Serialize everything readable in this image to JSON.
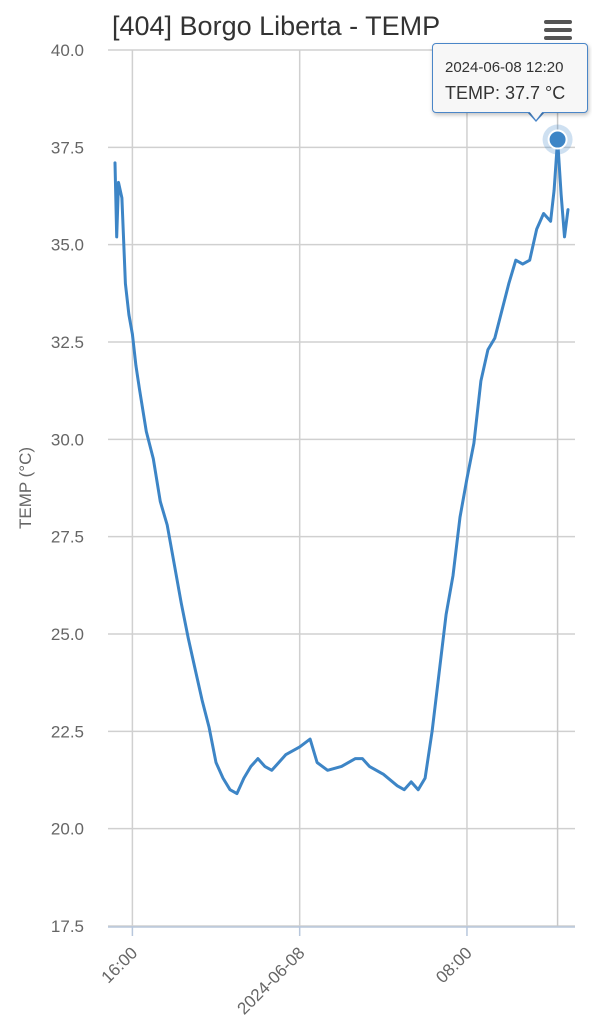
{
  "chart_data": {
    "type": "line",
    "title": "[404] Borgo Liberta - TEMP",
    "ylabel": "TEMP (°C)",
    "xlabel": "",
    "ylim": [
      17.5,
      40.0
    ],
    "yticks": [
      "17.5",
      "20.0",
      "22.5",
      "25.0",
      "27.5",
      "30.0",
      "32.5",
      "35.0",
      "37.5",
      "40.0"
    ],
    "xlim": [
      "2024-06-07 14:50",
      "2024-06-08 13:10"
    ],
    "xticks": [
      {
        "t": "2024-06-07 16:00",
        "label": "16:00"
      },
      {
        "t": "2024-06-08 00:00",
        "label": "2024-06-08"
      },
      {
        "t": "2024-06-08 08:00",
        "label": "08:00"
      }
    ],
    "grid": true,
    "series": [
      {
        "color": "#3d85c6",
        "points": [
          [
            "2024-06-07 15:10",
            37.1
          ],
          [
            "2024-06-07 15:15",
            35.2
          ],
          [
            "2024-06-07 15:20",
            36.6
          ],
          [
            "2024-06-07 15:30",
            36.2
          ],
          [
            "2024-06-07 15:40",
            34.0
          ],
          [
            "2024-06-07 15:50",
            33.2
          ],
          [
            "2024-06-07 16:00",
            32.7
          ],
          [
            "2024-06-07 16:10",
            31.9
          ],
          [
            "2024-06-07 16:20",
            31.3
          ],
          [
            "2024-06-07 16:40",
            30.2
          ],
          [
            "2024-06-07 17:00",
            29.5
          ],
          [
            "2024-06-07 17:20",
            28.4
          ],
          [
            "2024-06-07 17:40",
            27.8
          ],
          [
            "2024-06-07 18:00",
            26.8
          ],
          [
            "2024-06-07 18:20",
            25.8
          ],
          [
            "2024-06-07 18:40",
            24.9
          ],
          [
            "2024-06-07 19:00",
            24.1
          ],
          [
            "2024-06-07 19:20",
            23.3
          ],
          [
            "2024-06-07 19:40",
            22.6
          ],
          [
            "2024-06-07 20:00",
            21.7
          ],
          [
            "2024-06-07 20:20",
            21.3
          ],
          [
            "2024-06-07 20:40",
            21.0
          ],
          [
            "2024-06-07 21:00",
            20.9
          ],
          [
            "2024-06-07 21:20",
            21.3
          ],
          [
            "2024-06-07 21:40",
            21.6
          ],
          [
            "2024-06-07 22:00",
            21.8
          ],
          [
            "2024-06-07 22:20",
            21.6
          ],
          [
            "2024-06-07 22:40",
            21.5
          ],
          [
            "2024-06-07 23:00",
            21.7
          ],
          [
            "2024-06-07 23:20",
            21.9
          ],
          [
            "2024-06-08 00:00",
            22.1
          ],
          [
            "2024-06-08 00:30",
            22.3
          ],
          [
            "2024-06-08 00:50",
            21.7
          ],
          [
            "2024-06-08 01:20",
            21.5
          ],
          [
            "2024-06-08 02:00",
            21.6
          ],
          [
            "2024-06-08 02:40",
            21.8
          ],
          [
            "2024-06-08 03:00",
            21.8
          ],
          [
            "2024-06-08 03:20",
            21.6
          ],
          [
            "2024-06-08 04:00",
            21.4
          ],
          [
            "2024-06-08 04:40",
            21.1
          ],
          [
            "2024-06-08 05:00",
            21.0
          ],
          [
            "2024-06-08 05:20",
            21.2
          ],
          [
            "2024-06-08 05:40",
            21.0
          ],
          [
            "2024-06-08 06:00",
            21.3
          ],
          [
            "2024-06-08 06:20",
            22.5
          ],
          [
            "2024-06-08 06:40",
            24.0
          ],
          [
            "2024-06-08 07:00",
            25.5
          ],
          [
            "2024-06-08 07:20",
            26.5
          ],
          [
            "2024-06-08 07:40",
            28.0
          ],
          [
            "2024-06-08 08:00",
            29.0
          ],
          [
            "2024-06-08 08:20",
            29.9
          ],
          [
            "2024-06-08 08:40",
            31.5
          ],
          [
            "2024-06-08 09:00",
            32.3
          ],
          [
            "2024-06-08 09:20",
            32.6
          ],
          [
            "2024-06-08 09:40",
            33.3
          ],
          [
            "2024-06-08 10:00",
            34.0
          ],
          [
            "2024-06-08 10:20",
            34.6
          ],
          [
            "2024-06-08 10:40",
            34.5
          ],
          [
            "2024-06-08 11:00",
            34.6
          ],
          [
            "2024-06-08 11:20",
            35.4
          ],
          [
            "2024-06-08 11:40",
            35.8
          ],
          [
            "2024-06-08 12:00",
            35.6
          ],
          [
            "2024-06-08 12:10",
            36.4
          ],
          [
            "2024-06-08 12:20",
            37.7
          ],
          [
            "2024-06-08 12:30",
            36.3
          ],
          [
            "2024-06-08 12:40",
            35.2
          ],
          [
            "2024-06-08 12:50",
            35.9
          ]
        ]
      }
    ],
    "highlight": {
      "t": "2024-06-08 12:20",
      "y": 37.7
    }
  },
  "tooltip": {
    "date": "2024-06-08 12:20",
    "value": "TEMP: 37.7 °C"
  },
  "menu": {
    "icon": "hamburger-menu-icon"
  }
}
